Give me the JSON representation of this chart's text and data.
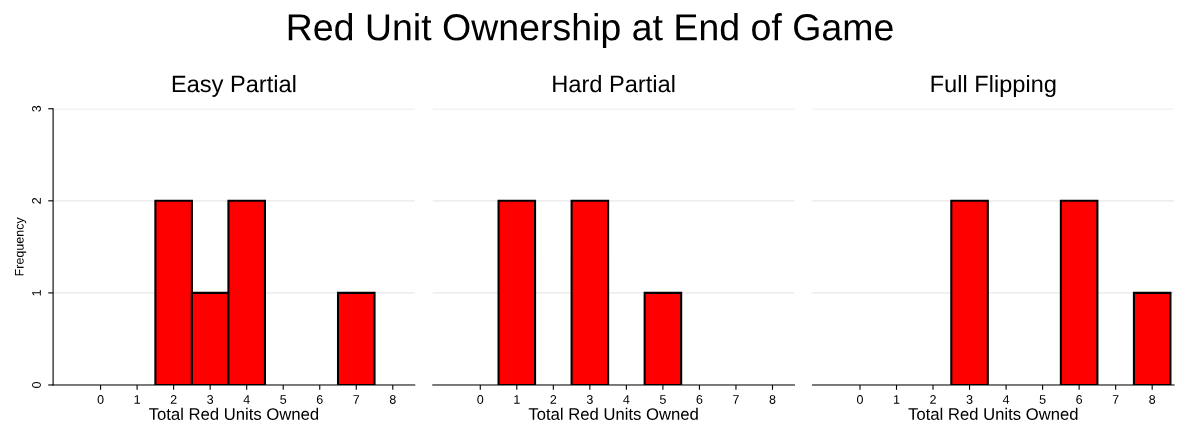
{
  "chart_data": [
    {
      "type": "histogram",
      "title": "Easy Partial",
      "xlabel": "Total Red Units Owned",
      "ylabel": "Frequency",
      "annotations": [
        "Red Unit Ownership at End of Game"
      ],
      "bins": [
        1.5,
        2.5,
        3.5,
        4.5,
        5.5,
        6.5,
        7.5
      ],
      "values": [
        2,
        1,
        2,
        0,
        0,
        1
      ],
      "color": "#ff0000",
      "xlim": [
        -1.3,
        8.6
      ],
      "xticks": [
        0,
        1,
        2,
        3,
        4,
        5,
        6,
        7,
        8
      ],
      "ylim": [
        0,
        3
      ],
      "yticks": [
        0,
        1,
        2,
        3
      ],
      "grid": "y"
    },
    {
      "type": "histogram",
      "title": "Hard Partial",
      "xlabel": "Total Red Units Owned",
      "bins": [
        0.5,
        1.5,
        2.5,
        3.5,
        4.5,
        5.5
      ],
      "values": [
        2,
        0,
        2,
        0,
        1
      ],
      "color": "#ff0000",
      "xlim": [
        -1.3,
        8.6
      ],
      "xticks": [
        0,
        1,
        2,
        3,
        4,
        5,
        6,
        7,
        8
      ],
      "ylim": [
        0,
        3
      ],
      "yticks": [
        0,
        1,
        2,
        3
      ],
      "grid": "y",
      "tick_labels": "x"
    },
    {
      "type": "histogram",
      "title": "Full Flipping",
      "xlabel": "Total Red Units Owned",
      "bins": [
        2.5,
        3.5,
        4.5,
        5.5,
        6.5,
        7.5,
        8.5
      ],
      "values": [
        2,
        0,
        0,
        2,
        0,
        1
      ],
      "color": "#ff0000",
      "xlim": [
        -1.3,
        8.6
      ],
      "xticks": [
        0,
        1,
        2,
        3,
        4,
        5,
        6,
        7,
        8
      ],
      "ylim": [
        0,
        3
      ],
      "yticks": [
        0,
        1,
        2,
        3
      ],
      "grid": "y",
      "tick_labels": "x"
    }
  ]
}
